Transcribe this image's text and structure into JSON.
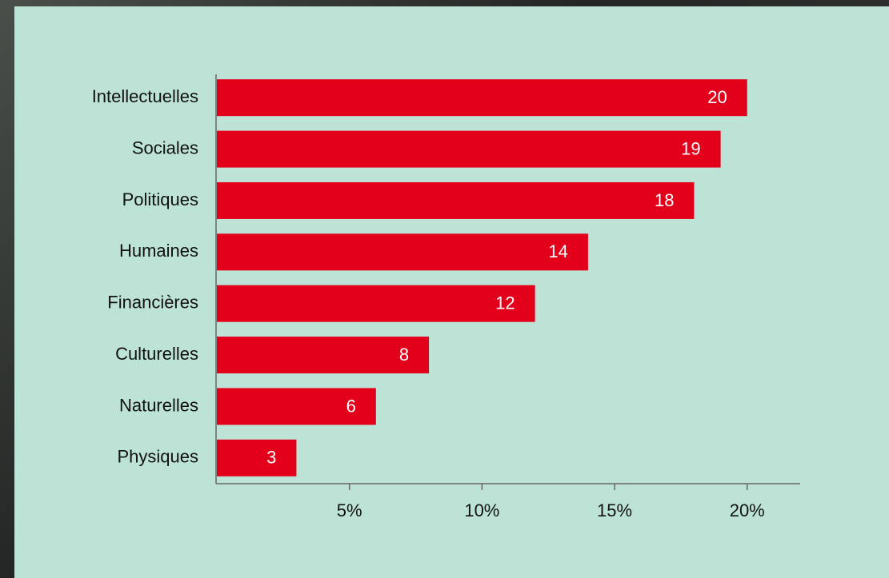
{
  "chart_data": {
    "type": "bar",
    "orientation": "horizontal",
    "categories": [
      "Intellectuelles",
      "Sociales",
      "Politiques",
      "Humaines",
      "Financières",
      "Culturelles",
      "Naturelles",
      "Physiques"
    ],
    "values": [
      20,
      19,
      18,
      14,
      12,
      8,
      6,
      3
    ],
    "color": "#e2001a",
    "xlim": [
      0,
      22
    ],
    "xticks": [
      {
        "value": 5,
        "label": "5%"
      },
      {
        "value": 10,
        "label": "10%"
      },
      {
        "value": 15,
        "label": "15%"
      },
      {
        "value": 20,
        "label": "20%"
      }
    ]
  }
}
